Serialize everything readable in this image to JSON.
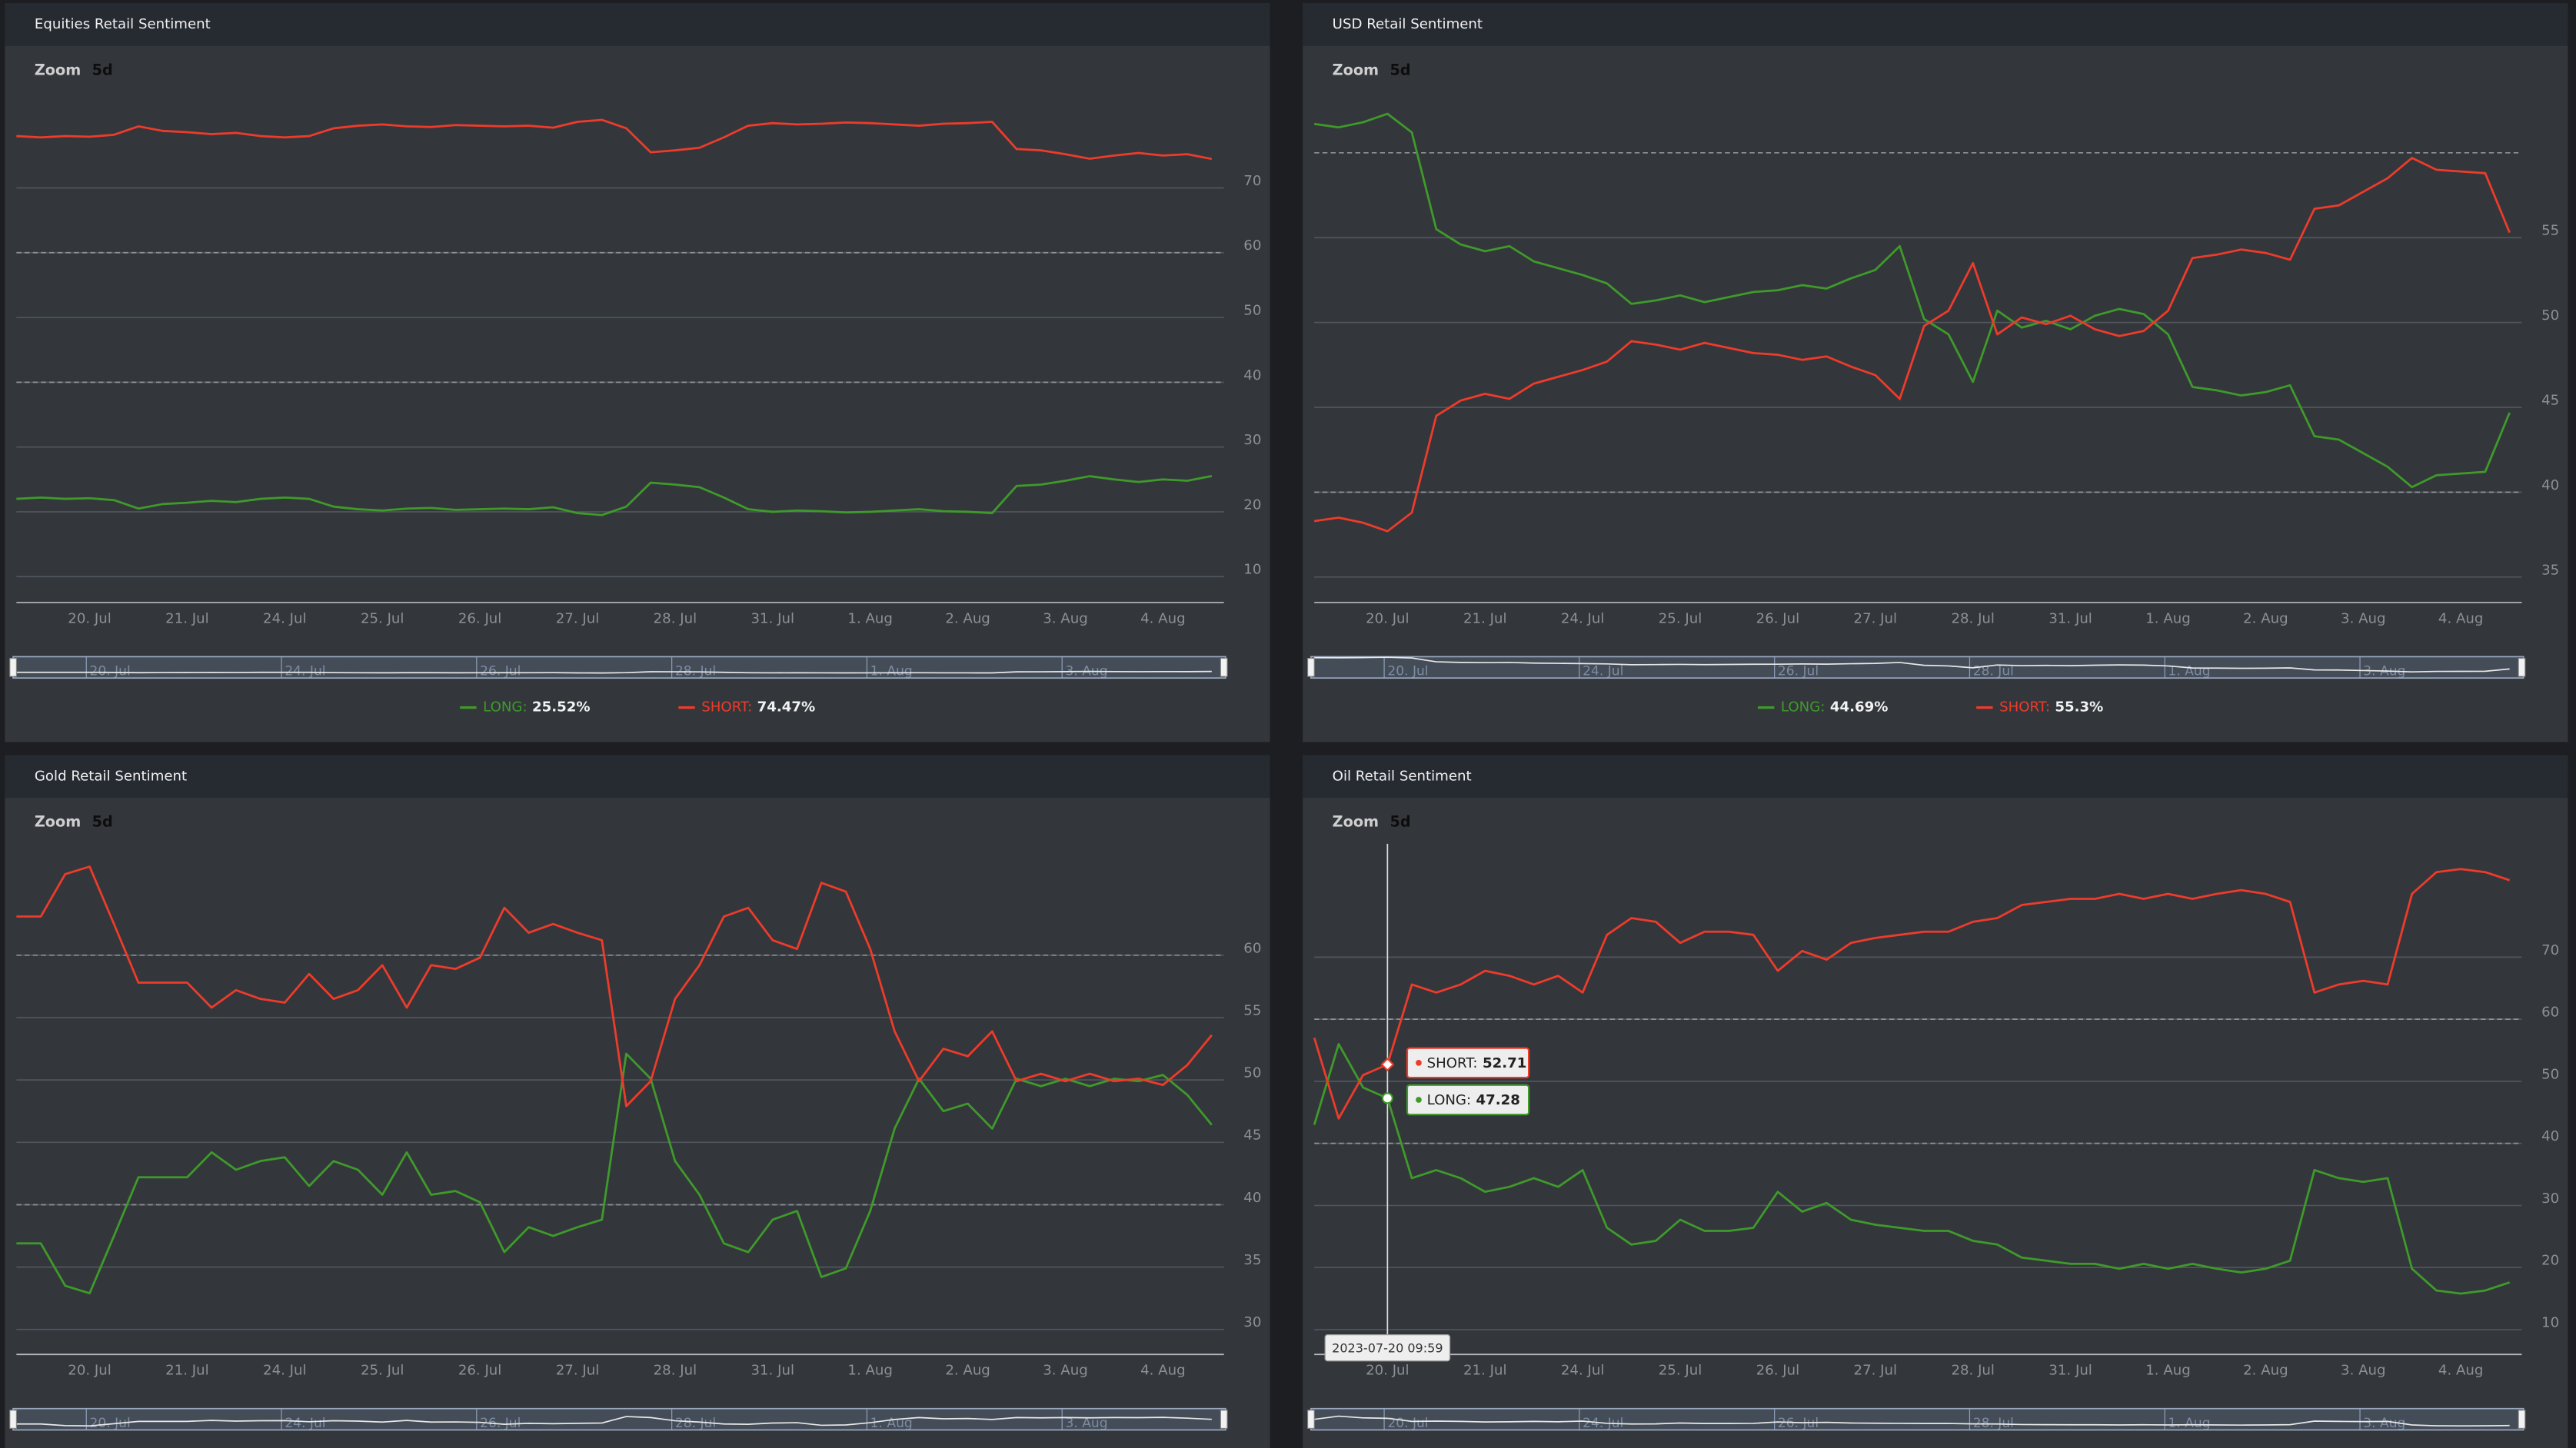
{
  "chart_data": [
    {
      "type": "line",
      "title": "Equities Retail Sentiment",
      "zoom": {
        "label": "Zoom",
        "button": "5d"
      },
      "categories": [
        null,
        null,
        null,
        "20. Jul",
        null,
        null,
        null,
        "21. Jul",
        null,
        null,
        null,
        "24. Jul",
        null,
        null,
        null,
        "25. Jul",
        null,
        null,
        null,
        "26. Jul",
        null,
        null,
        null,
        "27. Jul",
        null,
        null,
        null,
        "28. Jul",
        null,
        null,
        null,
        "31. Jul",
        null,
        null,
        null,
        "1. Aug",
        null,
        null,
        null,
        "2. Aug",
        null,
        null,
        null,
        "3. Aug",
        null,
        null,
        null,
        "4. Aug",
        null,
        null
      ],
      "series": [
        {
          "name": "LONG:",
          "color": "#3f9a2a",
          "legend_value": "25.52%",
          "values": [
            22,
            22.2,
            22,
            22.1,
            21.8,
            20.5,
            21.2,
            21.4,
            21.7,
            21.5,
            22,
            22.2,
            22,
            20.8,
            20.4,
            20.2,
            20.5,
            20.6,
            20.3,
            20.4,
            20.5,
            20.4,
            20.7,
            19.8,
            19.5,
            20.8,
            24.5,
            24.2,
            23.8,
            22.2,
            20.4,
            20,
            20.2,
            20.1,
            19.9,
            20,
            20.2,
            20.4,
            20.1,
            20,
            19.8,
            24,
            24.2,
            24.8,
            25.5,
            25,
            24.6,
            25,
            24.8,
            25.52
          ]
        },
        {
          "name": "SHORT:",
          "color": "#ee3b2a",
          "legend_value": "74.47%",
          "values": [
            78,
            77.8,
            78,
            77.9,
            78.2,
            79.5,
            78.8,
            78.6,
            78.3,
            78.5,
            78,
            77.8,
            78,
            79.2,
            79.6,
            79.8,
            79.5,
            79.4,
            79.7,
            79.6,
            79.5,
            79.6,
            79.3,
            80.2,
            80.5,
            79.2,
            75.5,
            75.8,
            76.2,
            77.8,
            79.6,
            80,
            79.8,
            79.9,
            80.1,
            80,
            79.8,
            79.6,
            79.9,
            80,
            80.2,
            76,
            75.8,
            75.2,
            74.5,
            75,
            75.4,
            75,
            75.2,
            74.47
          ]
        }
      ],
      "ylim": [
        6,
        83.8
      ],
      "yticks": [
        10,
        20,
        30,
        40,
        50,
        60,
        70
      ],
      "dashed_lines": [
        40,
        60
      ],
      "grid": true
    },
    {
      "type": "line",
      "title": "USD Retail Sentiment",
      "zoom": {
        "label": "Zoom",
        "button": "5d"
      },
      "categories": [
        null,
        null,
        null,
        "20. Jul",
        null,
        null,
        null,
        "21. Jul",
        null,
        null,
        null,
        "24. Jul",
        null,
        null,
        null,
        "25. Jul",
        null,
        null,
        null,
        "26. Jul",
        null,
        null,
        null,
        "27. Jul",
        null,
        null,
        null,
        "28. Jul",
        null,
        null,
        null,
        "31. Jul",
        null,
        null,
        null,
        "1. Aug",
        null,
        null,
        null,
        "2. Aug",
        null,
        null,
        null,
        "3. Aug",
        null,
        null,
        null,
        "4. Aug",
        null,
        null
      ],
      "series": [
        {
          "name": "LONG:",
          "color": "#3f9a2a",
          "legend_value": "44.69%",
          "values": [
            61.7,
            61.5,
            61.8,
            62.3,
            61.2,
            55.5,
            54.6,
            54.2,
            54.5,
            53.6,
            53.2,
            52.8,
            52.3,
            51.1,
            51.3,
            51.6,
            51.2,
            51.5,
            51.8,
            51.9,
            52.2,
            52,
            52.6,
            53.1,
            54.5,
            50.2,
            49.3,
            46.5,
            50.7,
            49.7,
            50.1,
            49.6,
            50.4,
            50.8,
            50.5,
            49.3,
            46.2,
            46,
            45.7,
            45.9,
            46.3,
            43.3,
            43.1,
            42.3,
            41.5,
            40.3,
            41,
            41.1,
            41.2,
            44.69
          ]
        },
        {
          "name": "SHORT:",
          "color": "#ee3b2a",
          "legend_value": "55.3%",
          "values": [
            38.3,
            38.5,
            38.2,
            37.7,
            38.8,
            44.5,
            45.4,
            45.8,
            45.5,
            46.4,
            46.8,
            47.2,
            47.7,
            48.9,
            48.7,
            48.4,
            48.8,
            48.5,
            48.2,
            48.1,
            47.8,
            48,
            47.4,
            46.9,
            45.5,
            49.8,
            50.7,
            53.5,
            49.3,
            50.3,
            49.9,
            50.4,
            49.6,
            49.2,
            49.5,
            50.7,
            53.8,
            54,
            54.3,
            54.1,
            53.7,
            56.7,
            56.9,
            57.7,
            58.5,
            59.7,
            59,
            58.9,
            58.8,
            55.3
          ]
        }
      ],
      "ylim": [
        33.5,
        63.2
      ],
      "yticks": [
        35,
        40,
        45,
        50,
        55
      ],
      "dashed_lines": [
        40,
        60
      ],
      "grid": true
    },
    {
      "type": "line",
      "title": "Gold Retail Sentiment",
      "zoom": {
        "label": "Zoom",
        "button": "5d"
      },
      "categories": [
        null,
        null,
        null,
        "20. Jul",
        null,
        null,
        null,
        "21. Jul",
        null,
        null,
        null,
        "24. Jul",
        null,
        null,
        null,
        "25. Jul",
        null,
        null,
        null,
        "26. Jul",
        null,
        null,
        null,
        "27. Jul",
        null,
        null,
        null,
        "28. Jul",
        null,
        null,
        null,
        "31. Jul",
        null,
        null,
        null,
        "1. Aug",
        null,
        null,
        null,
        "2. Aug",
        null,
        null,
        null,
        "3. Aug",
        null,
        null,
        null,
        "4. Aug",
        null,
        null
      ],
      "series": [
        {
          "name": "LONG:",
          "color": "#3f9a2a",
          "values": [
            36.9,
            36.9,
            33.5,
            32.9,
            37.5,
            42.2,
            42.2,
            42.2,
            44.2,
            42.8,
            43.5,
            43.8,
            41.5,
            43.5,
            42.8,
            40.8,
            44.2,
            40.8,
            41.1,
            40.2,
            36.2,
            38.2,
            37.5,
            38.2,
            38.8,
            52.1,
            50.1,
            43.5,
            40.8,
            36.9,
            36.2,
            38.8,
            39.5,
            34.2,
            34.9,
            39.5,
            46.1,
            50.1,
            47.5,
            48.1,
            46.1,
            50.1,
            49.5,
            50.1,
            49.5,
            50.1,
            49.9,
            50.4,
            48.8,
            46.4
          ]
        },
        {
          "name": "SHORT:",
          "color": "#ee3b2a",
          "values": [
            63.1,
            63.1,
            66.5,
            67.1,
            62.5,
            57.8,
            57.8,
            57.8,
            55.8,
            57.2,
            56.5,
            56.2,
            58.5,
            56.5,
            57.2,
            59.2,
            55.8,
            59.2,
            58.9,
            59.8,
            63.8,
            61.8,
            62.5,
            61.8,
            61.2,
            47.9,
            49.9,
            56.5,
            59.2,
            63.1,
            63.8,
            61.2,
            60.5,
            65.8,
            65.1,
            60.5,
            53.9,
            49.9,
            52.5,
            51.9,
            53.9,
            49.9,
            50.5,
            49.9,
            50.5,
            49.9,
            50.1,
            49.6,
            51.2,
            53.6
          ]
        }
      ],
      "ylim": [
        28,
        68.4
      ],
      "yticks": [
        30,
        35,
        40,
        45,
        50,
        55,
        60
      ],
      "dashed_lines": [
        40,
        60
      ],
      "grid": true
    },
    {
      "type": "line",
      "title": "Oil Retail Sentiment",
      "zoom": {
        "label": "Zoom",
        "button": "5d"
      },
      "categories": [
        null,
        null,
        null,
        "20. Jul",
        null,
        null,
        null,
        "21. Jul",
        null,
        null,
        null,
        "24. Jul",
        null,
        null,
        null,
        "25. Jul",
        null,
        null,
        null,
        "26. Jul",
        null,
        null,
        null,
        "27. Jul",
        null,
        null,
        null,
        "28. Jul",
        null,
        null,
        null,
        "31. Jul",
        null,
        null,
        null,
        "1. Aug",
        null,
        null,
        null,
        "2. Aug",
        null,
        null,
        null,
        "3. Aug",
        null,
        null,
        null,
        "4. Aug",
        null,
        null
      ],
      "series": [
        {
          "name": "LONG:",
          "color": "#3f9a2a",
          "values": [
            43,
            56,
            49,
            47.28,
            34.4,
            35.7,
            34.4,
            32.2,
            33,
            34.4,
            33,
            35.7,
            26.4,
            23.7,
            24.3,
            27.7,
            25.9,
            25.9,
            26.4,
            32.2,
            29,
            30.4,
            27.7,
            26.9,
            26.4,
            25.9,
            25.9,
            24.3,
            23.7,
            21.6,
            21.1,
            20.6,
            20.6,
            19.8,
            20.6,
            19.8,
            20.6,
            19.8,
            19.2,
            19.8,
            21.1,
            35.7,
            34.4,
            33.8,
            34.4,
            19.8,
            16.3,
            15.8,
            16.3,
            17.6
          ]
        },
        {
          "name": "SHORT:",
          "color": "#ee3b2a",
          "values": [
            57,
            44,
            51,
            52.71,
            65.6,
            64.3,
            65.6,
            67.8,
            67,
            65.6,
            67,
            64.3,
            73.6,
            76.3,
            75.7,
            72.3,
            74.1,
            74.1,
            73.6,
            67.8,
            71,
            69.6,
            72.3,
            73.1,
            73.6,
            74.1,
            74.1,
            75.7,
            76.3,
            78.4,
            78.9,
            79.4,
            79.4,
            80.2,
            79.4,
            80.2,
            79.4,
            80.2,
            80.8,
            80.2,
            78.9,
            64.3,
            65.6,
            66.2,
            65.6,
            80.2,
            83.7,
            84.2,
            83.7,
            82.4
          ]
        }
      ],
      "tooltip": {
        "label": "2023-07-20 09:59",
        "items": [
          {
            "name": "SHORT:",
            "value": 52.71
          },
          {
            "name": "LONG:",
            "value": 47.28
          }
        ]
      },
      "ylim": [
        6,
        87.2
      ],
      "yticks": [
        10,
        20,
        30,
        40,
        50,
        60,
        70
      ],
      "dashed_lines": [
        40,
        60
      ],
      "grid": true
    }
  ]
}
